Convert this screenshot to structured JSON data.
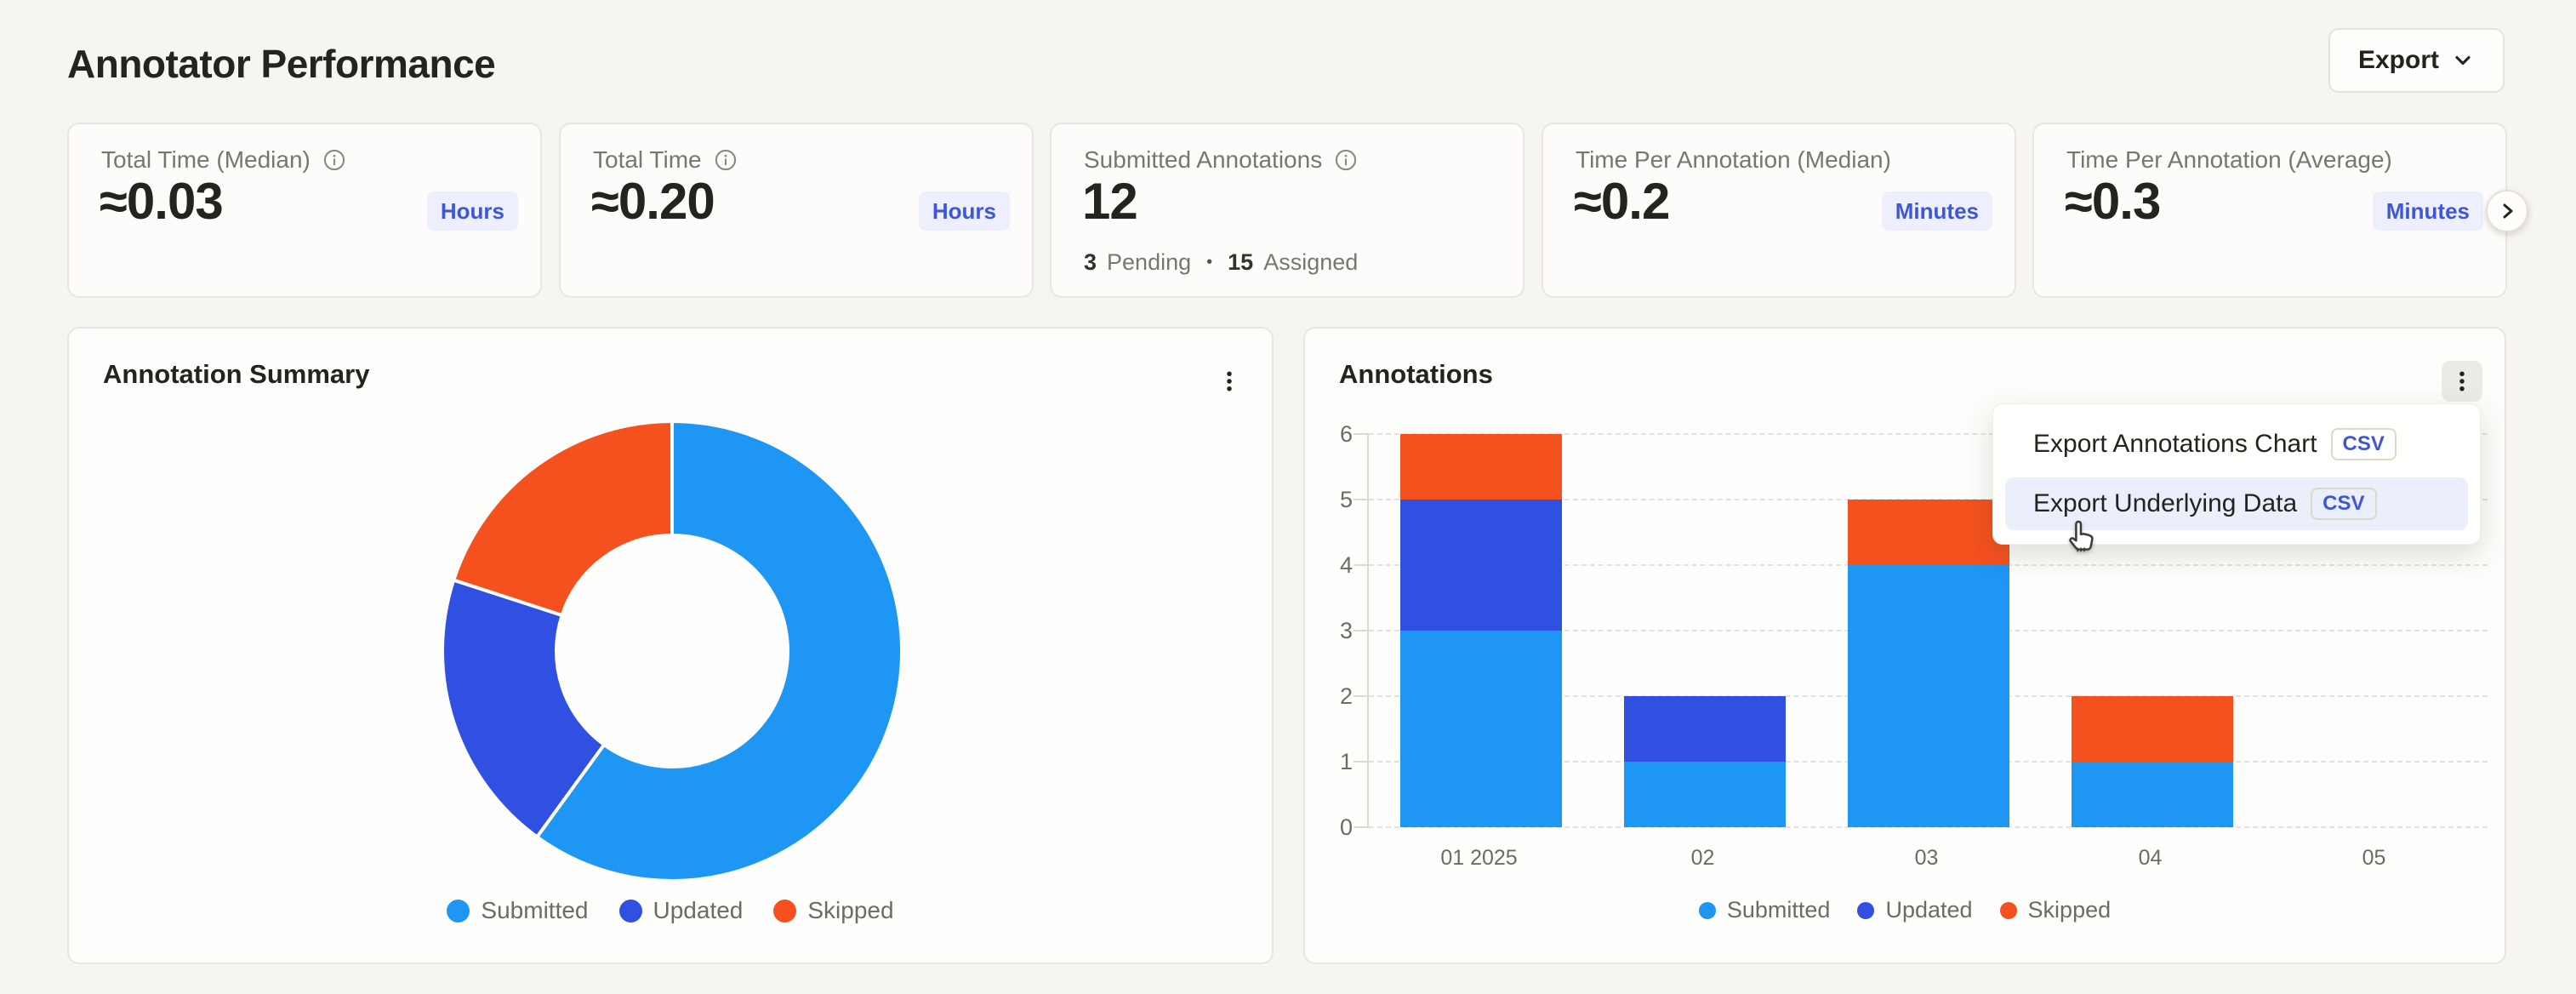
{
  "page": {
    "title": "Annotator Performance"
  },
  "export_button": {
    "label": "Export"
  },
  "colors": {
    "submitted": "#1e96f3",
    "updated": "#2f50e1",
    "skipped": "#f4511e",
    "badge_bg": "#edeffc",
    "badge_text": "#3f57d6",
    "page_bg": "#f6f5f1",
    "card_bg": "#fdfdfb",
    "card_border": "#e9e6df"
  },
  "kpi_cards": [
    {
      "label": "Total Time (Median)",
      "value": "≈0.03",
      "unit": "Hours"
    },
    {
      "label": "Total Time",
      "value": "≈0.20",
      "unit": "Hours"
    },
    {
      "label": "Submitted Annotations",
      "value": "12",
      "unit": "",
      "footer": {
        "pending_count": "3",
        "pending_label": "Pending",
        "separator": "•",
        "assigned_count": "15",
        "assigned_label": "Assigned"
      }
    },
    {
      "label": "Time Per Annotation (Median)",
      "value": "≈0.2",
      "unit": "Minutes"
    },
    {
      "label": "Time Per Annotation (Average)",
      "value": "≈0.3",
      "unit": "Minutes"
    }
  ],
  "donut_card": {
    "title": "Annotation Summary"
  },
  "bar_card": {
    "title": "Annotations"
  },
  "menu": {
    "items": [
      {
        "label": "Export Annotations Chart",
        "badge": "CSV"
      },
      {
        "label": "Export Underlying Data",
        "badge": "CSV"
      }
    ]
  },
  "chart_data": [
    {
      "type": "pie",
      "donut": true,
      "title": "Annotation Summary",
      "labels": [
        "Submitted",
        "Updated",
        "Skipped"
      ],
      "values": [
        9,
        3,
        3
      ],
      "percents": [
        60,
        20,
        20
      ],
      "colors": [
        "#1e96f3",
        "#2f50e1",
        "#f4511e"
      ],
      "start_angle": "top",
      "direction": "clockwise",
      "legend_position": "bottom"
    },
    {
      "type": "bar",
      "stacked": true,
      "title": "Annotations",
      "categories": [
        "01 2025",
        "02",
        "03",
        "04",
        "05"
      ],
      "series": [
        {
          "name": "Submitted",
          "color": "#1e96f3",
          "values": [
            3,
            1,
            4,
            1,
            0
          ]
        },
        {
          "name": "Updated",
          "color": "#2f50e1",
          "values": [
            2,
            1,
            0,
            0,
            0
          ]
        },
        {
          "name": "Skipped",
          "color": "#f4511e",
          "values": [
            1,
            0,
            1,
            1,
            0
          ]
        }
      ],
      "totals": [
        6,
        2,
        5,
        2,
        0
      ],
      "ylim": [
        0,
        6
      ],
      "yticks": [
        0,
        1,
        2,
        3,
        4,
        5,
        6
      ],
      "grid": "dashed-horizontal",
      "legend_position": "bottom"
    }
  ]
}
